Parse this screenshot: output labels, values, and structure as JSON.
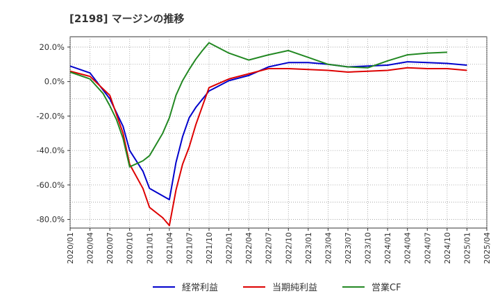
{
  "chart_data": {
    "type": "line",
    "title": "[2198]  マージンの推移",
    "xlabel": "",
    "ylabel": "",
    "ylim": [
      -85,
      26
    ],
    "yticks": [
      20,
      0,
      -20,
      -40,
      -60,
      -80
    ],
    "ytick_labels": [
      "20.0%",
      "0.0%",
      "-20.0%",
      "-40.0%",
      "-60.0%",
      "-80.0%"
    ],
    "xtick_labels": [
      "2020/01",
      "2020/04",
      "2020/07",
      "2020/10",
      "2021/01",
      "2021/04",
      "2021/07",
      "2021/10",
      "2022/01",
      "2022/04",
      "2022/07",
      "2022/10",
      "2023/01",
      "2023/04",
      "2023/07",
      "2023/10",
      "2024/01",
      "2024/04",
      "2024/07",
      "2024/10",
      "2025/01",
      "2025/04"
    ],
    "grid": true,
    "legend_position": "bottom",
    "series": [
      {
        "name": "経常利益",
        "color": "#0000cc",
        "points": [
          [
            "2020/01",
            9.0
          ],
          [
            "2020/04",
            5.0
          ],
          [
            "2020/07",
            -10.0
          ],
          [
            "2020/09",
            -26.0
          ],
          [
            "2020/10",
            -40.0
          ],
          [
            "2020/12",
            -52.0
          ],
          [
            "2021/01",
            -62.0
          ],
          [
            "2021/04",
            -68.5
          ],
          [
            "2021/05",
            -47.0
          ],
          [
            "2021/06",
            -32.0
          ],
          [
            "2021/07",
            -21.0
          ],
          [
            "2021/08",
            -15.0
          ],
          [
            "2021/10",
            -5.5
          ],
          [
            "2022/01",
            0.5
          ],
          [
            "2022/04",
            3.5
          ],
          [
            "2022/07",
            8.5
          ],
          [
            "2022/10",
            11.0
          ],
          [
            "2023/01",
            11.0
          ],
          [
            "2023/04",
            10.0
          ],
          [
            "2023/07",
            8.5
          ],
          [
            "2023/10",
            9.0
          ],
          [
            "2024/01",
            9.5
          ],
          [
            "2024/04",
            11.5
          ],
          [
            "2024/07",
            11.0
          ],
          [
            "2024/10",
            10.5
          ],
          [
            "2025/01",
            9.5
          ]
        ]
      },
      {
        "name": "当期純利益",
        "color": "#dd0000",
        "points": [
          [
            "2020/01",
            6.0
          ],
          [
            "2020/04",
            3.0
          ],
          [
            "2020/07",
            -8.0
          ],
          [
            "2020/09",
            -30.0
          ],
          [
            "2020/10",
            -48.0
          ],
          [
            "2020/12",
            -62.0
          ],
          [
            "2021/01",
            -73.0
          ],
          [
            "2021/03",
            -79.0
          ],
          [
            "2021/04",
            -83.5
          ],
          [
            "2021/05",
            -63.0
          ],
          [
            "2021/06",
            -48.0
          ],
          [
            "2021/07",
            -38.0
          ],
          [
            "2021/08",
            -25.0
          ],
          [
            "2021/10",
            -3.5
          ],
          [
            "2022/01",
            1.5
          ],
          [
            "2022/04",
            4.5
          ],
          [
            "2022/07",
            7.5
          ],
          [
            "2022/10",
            7.5
          ],
          [
            "2023/01",
            7.0
          ],
          [
            "2023/04",
            6.5
          ],
          [
            "2023/07",
            5.5
          ],
          [
            "2023/10",
            6.0
          ],
          [
            "2024/01",
            6.5
          ],
          [
            "2024/04",
            8.0
          ],
          [
            "2024/07",
            7.5
          ],
          [
            "2024/10",
            7.5
          ],
          [
            "2025/01",
            6.5
          ]
        ]
      },
      {
        "name": "営業CF",
        "color": "#228822",
        "points": [
          [
            "2020/01",
            5.5
          ],
          [
            "2020/04",
            1.5
          ],
          [
            "2020/06",
            -7.0
          ],
          [
            "2020/07",
            -14.0
          ],
          [
            "2020/08",
            -22.0
          ],
          [
            "2020/09",
            -33.0
          ],
          [
            "2020/10",
            -49.5
          ],
          [
            "2020/12",
            -46.0
          ],
          [
            "2021/01",
            -43.0
          ],
          [
            "2021/03",
            -30.0
          ],
          [
            "2021/04",
            -21.0
          ],
          [
            "2021/05",
            -8.0
          ],
          [
            "2021/06",
            0.5
          ],
          [
            "2021/07",
            7.0
          ],
          [
            "2021/08",
            13.0
          ],
          [
            "2021/09",
            18.0
          ],
          [
            "2021/10",
            22.5
          ],
          [
            "2022/01",
            16.5
          ],
          [
            "2022/04",
            12.5
          ],
          [
            "2022/07",
            15.5
          ],
          [
            "2022/10",
            18.0
          ],
          [
            "2023/01",
            14.0
          ],
          [
            "2023/04",
            10.0
          ],
          [
            "2023/07",
            8.5
          ],
          [
            "2023/10",
            8.0
          ],
          [
            "2024/01",
            12.0
          ],
          [
            "2024/04",
            15.5
          ],
          [
            "2024/07",
            16.5
          ],
          [
            "2024/10",
            17.0
          ]
        ]
      }
    ]
  }
}
